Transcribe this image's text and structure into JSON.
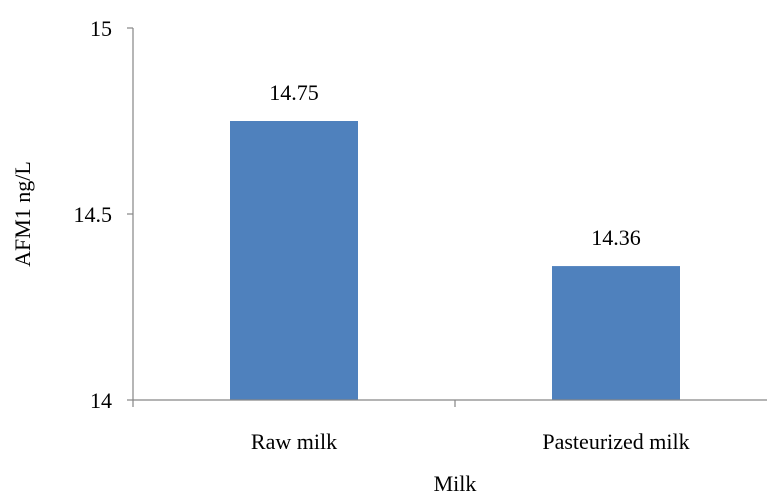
{
  "chart_data": {
    "type": "bar",
    "title": "",
    "xlabel": "Milk",
    "ylabel": "AFM1 ng/L",
    "categories": [
      "Raw milk",
      "Pasteurized milk"
    ],
    "values": [
      14.75,
      14.36
    ],
    "data_labels": [
      "14.75",
      "14.36"
    ],
    "ylim": [
      14,
      15
    ],
    "yticks": [
      14,
      14.5,
      15
    ],
    "ytick_labels": [
      "14",
      "14.5",
      "15"
    ],
    "grid": false,
    "legend": "none",
    "bar_color": "#4F81BD",
    "axis_color": "#868686"
  }
}
